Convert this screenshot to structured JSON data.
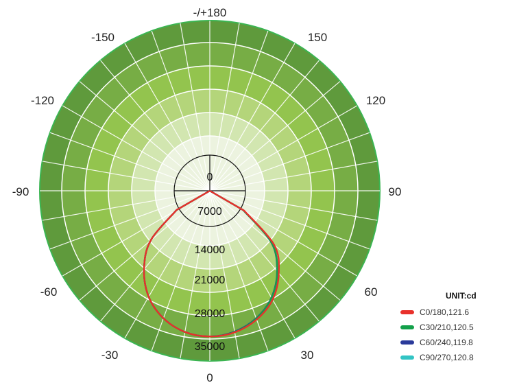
{
  "chart_data": {
    "type": "polar",
    "unit_label": "UNIT:cd",
    "angle_labels": [
      "-/+180",
      "150",
      "120",
      "90",
      "60",
      "30",
      "0",
      "-30",
      "-60",
      "-90",
      "-120",
      "-150"
    ],
    "radial_labels": [
      "0",
      "7000",
      "14000",
      "21000",
      "28000",
      "35000"
    ],
    "radial_max": 35000,
    "colors": {
      "band_outer": "#5f9a3c",
      "band_2": "#77ad45",
      "band_3": "#93c44e",
      "band_4": "#b4d57a",
      "band_5": "#d2e6b0",
      "band_inner": "#ecf3df",
      "rim": "#3bb552"
    },
    "series": [
      {
        "name": "C0/180,121.6",
        "color": "#e8302b",
        "angles": [
          -60,
          -50,
          -40,
          -30,
          -20,
          -10,
          0,
          10,
          20,
          30,
          40,
          50,
          60
        ],
        "values": [
          800,
          12500,
          20000,
          26000,
          30000,
          32300,
          33000,
          32400,
          30400,
          27000,
          21500,
          14500,
          1200
        ]
      },
      {
        "name": "C30/210,120.5",
        "color": "#13a04a",
        "angles": [
          -60,
          -50,
          -40,
          -30,
          -20,
          -10,
          0,
          10,
          20,
          30,
          40,
          50,
          60
        ],
        "values": [
          800,
          12500,
          20000,
          26000,
          30000,
          32300,
          33000,
          32300,
          30100,
          26400,
          20800,
          13500,
          900
        ]
      },
      {
        "name": "C60/240,119.8",
        "color": "#2a3a9a",
        "angles": [
          -60,
          -50,
          -40,
          -30,
          -20,
          -10,
          0,
          10,
          20,
          30,
          40,
          50,
          60
        ],
        "values": [
          800,
          12500,
          20000,
          26000,
          30000,
          32300,
          33000,
          32200,
          30000,
          26300,
          20700,
          13400,
          900
        ]
      },
      {
        "name": "C90/270,120.8",
        "color": "#33c4c4",
        "angles": [
          -60,
          -50,
          -40,
          -30,
          -20,
          -10,
          0,
          10,
          20,
          30,
          40,
          50,
          60
        ],
        "values": [
          800,
          12500,
          20000,
          26000,
          30000,
          32300,
          33000,
          32300,
          30100,
          26400,
          20800,
          13500,
          900
        ]
      }
    ]
  }
}
